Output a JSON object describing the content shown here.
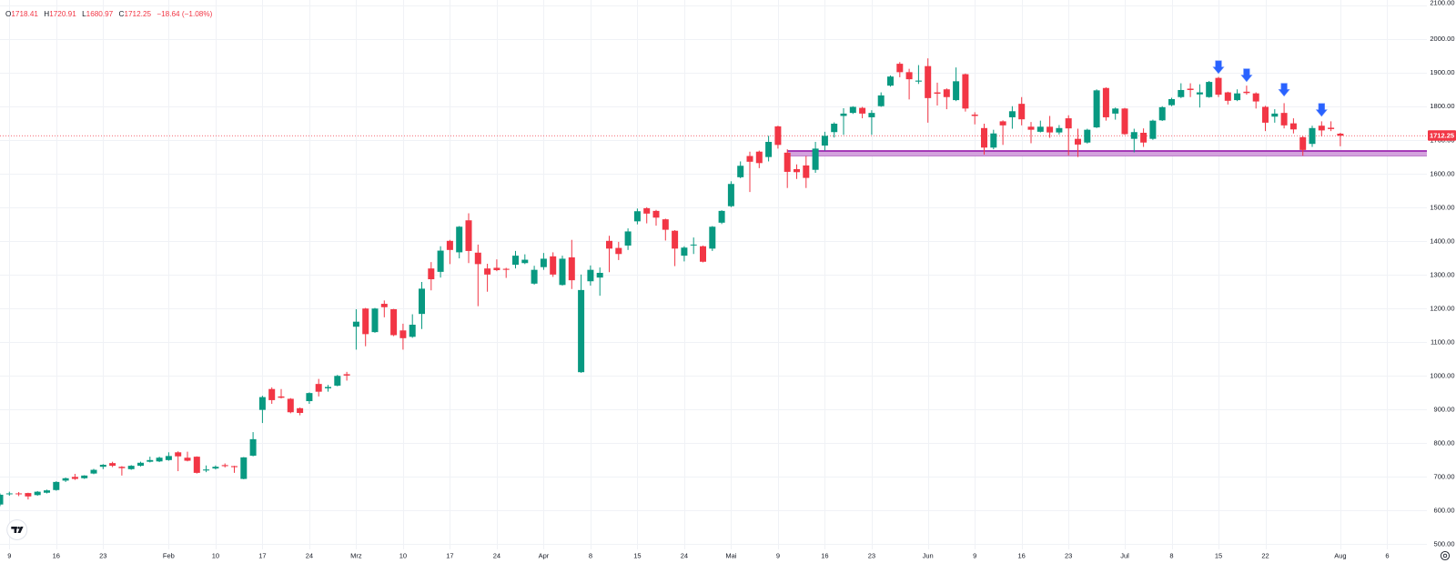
{
  "legend": {
    "o_label": "O",
    "o_value": "1718.41",
    "h_label": "H",
    "h_value": "1720.91",
    "l_label": "L",
    "l_value": "1680.97",
    "c_label": "C",
    "c_value": "1712.25",
    "change": "−18.64 (−1.08%)"
  },
  "colors": {
    "up": "#089981",
    "down": "#f23645",
    "arrow": "#2962ff",
    "zone_line": "#9c27b0",
    "zone_fill": "#d3a2dd",
    "grid": "#f0f2f6",
    "text": "#131722"
  },
  "logo": {
    "label": "TV"
  },
  "settings": {
    "icon": "settings-icon"
  },
  "chart_data": {
    "type": "candlestick",
    "title": "",
    "xlabel": "",
    "ylabel": "",
    "ylim": [
      486,
      2115
    ],
    "grid": true,
    "legend_position": "top-left",
    "current_price": {
      "value": 1712.25,
      "label": "1712.25"
    },
    "support_zone": {
      "top": 1667,
      "bottom": 1652,
      "start_index": 84
    },
    "annotations": [
      {
        "type": "arrow-down",
        "index": 130,
        "tip_price": 1897
      },
      {
        "type": "arrow-down",
        "index": 133,
        "tip_price": 1873
      },
      {
        "type": "arrow-down",
        "index": 137,
        "tip_price": 1830
      },
      {
        "type": "arrow-down",
        "index": 141,
        "tip_price": 1770
      }
    ],
    "y_ticks": [
      {
        "value": 2100,
        "label": "2100.00"
      },
      {
        "value": 2000,
        "label": "2000.00"
      },
      {
        "value": 1900,
        "label": "1900.00"
      },
      {
        "value": 1800,
        "label": "1800.00"
      },
      {
        "value": 1700,
        "label": "1700.00"
      },
      {
        "value": 1600,
        "label": "1600.00"
      },
      {
        "value": 1500,
        "label": "1500.00"
      },
      {
        "value": 1400,
        "label": "1400.00"
      },
      {
        "value": 1300,
        "label": "1300.00"
      },
      {
        "value": 1200,
        "label": "1200.00"
      },
      {
        "value": 1100,
        "label": "1100.00"
      },
      {
        "value": 1000,
        "label": "1000.00"
      },
      {
        "value": 900,
        "label": "900.00"
      },
      {
        "value": 800,
        "label": "800.00"
      },
      {
        "value": 700,
        "label": "700.00"
      },
      {
        "value": 600,
        "label": "600.00"
      },
      {
        "value": 500,
        "label": "500.00"
      }
    ],
    "x_ticks": [
      {
        "label": "9",
        "index": 1
      },
      {
        "label": "16",
        "index": 6
      },
      {
        "label": "23",
        "index": 11
      },
      {
        "label": "Feb",
        "index": 18
      },
      {
        "label": "10",
        "index": 23
      },
      {
        "label": "17",
        "index": 28
      },
      {
        "label": "24",
        "index": 33
      },
      {
        "label": "Mrz",
        "index": 38
      },
      {
        "label": "10",
        "index": 43
      },
      {
        "label": "17",
        "index": 48
      },
      {
        "label": "24",
        "index": 53
      },
      {
        "label": "Apr",
        "index": 58
      },
      {
        "label": "8",
        "index": 63
      },
      {
        "label": "15",
        "index": 68
      },
      {
        "label": "24",
        "index": 73
      },
      {
        "label": "Mai",
        "index": 78
      },
      {
        "label": "9",
        "index": 83
      },
      {
        "label": "16",
        "index": 88
      },
      {
        "label": "23",
        "index": 93
      },
      {
        "label": "Jun",
        "index": 99
      },
      {
        "label": "9",
        "index": 104
      },
      {
        "label": "16",
        "index": 109
      },
      {
        "label": "23",
        "index": 114
      },
      {
        "label": "Jul",
        "index": 120
      },
      {
        "label": "8",
        "index": 125
      },
      {
        "label": "15",
        "index": 130
      },
      {
        "label": "22",
        "index": 135
      },
      {
        "label": "Aug",
        "index": 143
      },
      {
        "label": "6",
        "index": 148
      }
    ],
    "candle_format": [
      "open",
      "high",
      "low",
      "close"
    ],
    "candles": [
      [
        617,
        650,
        612,
        646
      ],
      [
        648,
        655,
        643,
        650
      ],
      [
        650,
        654,
        642,
        648
      ],
      [
        651,
        652,
        632,
        641
      ],
      [
        645,
        657,
        643,
        655
      ],
      [
        652,
        661,
        650,
        659
      ],
      [
        660,
        686,
        658,
        684
      ],
      [
        688,
        697,
        684,
        695
      ],
      [
        699,
        708,
        690,
        693
      ],
      [
        695,
        704,
        693,
        703
      ],
      [
        709,
        723,
        707,
        720
      ],
      [
        729,
        737,
        722,
        735
      ],
      [
        740,
        744,
        728,
        732
      ],
      [
        729,
        731,
        703,
        725
      ],
      [
        722,
        734,
        720,
        732
      ],
      [
        732,
        744,
        730,
        741
      ],
      [
        744,
        759,
        742,
        749
      ],
      [
        745,
        759,
        743,
        756
      ],
      [
        749,
        772,
        747,
        761
      ],
      [
        772,
        775,
        716,
        760
      ],
      [
        756,
        774,
        745,
        747
      ],
      [
        759,
        760,
        709,
        711
      ],
      [
        718,
        733,
        713,
        721
      ],
      [
        724,
        733,
        721,
        729
      ],
      [
        734,
        739,
        727,
        731
      ],
      [
        731,
        732,
        711,
        728
      ],
      [
        693,
        758,
        692,
        757
      ],
      [
        762,
        832,
        760,
        811
      ],
      [
        898,
        940,
        859,
        936
      ],
      [
        960,
        965,
        916,
        927
      ],
      [
        938,
        960,
        932,
        934
      ],
      [
        931,
        933,
        888,
        891
      ],
      [
        903,
        905,
        882,
        889
      ],
      [
        924,
        950,
        916,
        948
      ],
      [
        975,
        990,
        938,
        952
      ],
      [
        962,
        972,
        952,
        966
      ],
      [
        970,
        1002,
        968,
        999
      ],
      [
        1004,
        1011,
        985,
        1000
      ],
      [
        1145,
        1197,
        1077,
        1160
      ],
      [
        1199,
        1201,
        1087,
        1123
      ],
      [
        1129,
        1201,
        1127,
        1199
      ],
      [
        1213,
        1223,
        1173,
        1203
      ],
      [
        1197,
        1198,
        1117,
        1120
      ],
      [
        1134,
        1154,
        1077,
        1111
      ],
      [
        1115,
        1182,
        1112,
        1151
      ],
      [
        1183,
        1278,
        1138,
        1258
      ],
      [
        1318,
        1337,
        1253,
        1286
      ],
      [
        1308,
        1384,
        1291,
        1371
      ],
      [
        1400,
        1403,
        1331,
        1373
      ],
      [
        1366,
        1444,
        1348,
        1442
      ],
      [
        1461,
        1482,
        1334,
        1370
      ],
      [
        1365,
        1389,
        1206,
        1331
      ],
      [
        1318,
        1332,
        1249,
        1300
      ],
      [
        1320,
        1345,
        1310,
        1313
      ],
      [
        1317,
        1320,
        1290,
        1314
      ],
      [
        1329,
        1370,
        1318,
        1356
      ],
      [
        1334,
        1360,
        1331,
        1344
      ],
      [
        1273,
        1326,
        1270,
        1314
      ],
      [
        1322,
        1364,
        1314,
        1347
      ],
      [
        1354,
        1366,
        1293,
        1300
      ],
      [
        1269,
        1356,
        1267,
        1347
      ],
      [
        1351,
        1403,
        1257,
        1283
      ],
      [
        1010,
        1300,
        1008,
        1254
      ],
      [
        1280,
        1327,
        1267,
        1314
      ],
      [
        1291,
        1321,
        1237,
        1305
      ],
      [
        1400,
        1415,
        1307,
        1377
      ],
      [
        1379,
        1397,
        1343,
        1361
      ],
      [
        1386,
        1437,
        1373,
        1428
      ],
      [
        1458,
        1496,
        1449,
        1488
      ],
      [
        1497,
        1500,
        1452,
        1481
      ],
      [
        1489,
        1492,
        1445,
        1469
      ],
      [
        1464,
        1466,
        1401,
        1433
      ],
      [
        1430,
        1432,
        1325,
        1377
      ],
      [
        1356,
        1384,
        1339,
        1380
      ],
      [
        1387,
        1410,
        1361,
        1389
      ],
      [
        1384,
        1386,
        1336,
        1338
      ],
      [
        1377,
        1444,
        1370,
        1442
      ],
      [
        1454,
        1491,
        1450,
        1489
      ],
      [
        1503,
        1577,
        1500,
        1569
      ],
      [
        1589,
        1636,
        1586,
        1623
      ],
      [
        1652,
        1665,
        1545,
        1635
      ],
      [
        1665,
        1668,
        1616,
        1631
      ],
      [
        1649,
        1712,
        1636,
        1694
      ],
      [
        1740,
        1742,
        1674,
        1685
      ],
      [
        1662,
        1672,
        1557,
        1605
      ],
      [
        1613,
        1627,
        1584,
        1604
      ],
      [
        1624,
        1652,
        1557,
        1587
      ],
      [
        1611,
        1694,
        1602,
        1674
      ],
      [
        1683,
        1724,
        1668,
        1712
      ],
      [
        1723,
        1752,
        1707,
        1748
      ],
      [
        1771,
        1794,
        1715,
        1778
      ],
      [
        1780,
        1800,
        1777,
        1798
      ],
      [
        1795,
        1798,
        1764,
        1778
      ],
      [
        1767,
        1788,
        1715,
        1780
      ],
      [
        1800,
        1841,
        1798,
        1832
      ],
      [
        1861,
        1891,
        1858,
        1888
      ],
      [
        1926,
        1931,
        1886,
        1901
      ],
      [
        1901,
        1911,
        1820,
        1880
      ],
      [
        1873,
        1922,
        1866,
        1876
      ],
      [
        1919,
        1942,
        1751,
        1824
      ],
      [
        1841,
        1870,
        1802,
        1837
      ],
      [
        1850,
        1853,
        1791,
        1827
      ],
      [
        1818,
        1915,
        1815,
        1874
      ],
      [
        1895,
        1897,
        1784,
        1793
      ],
      [
        1775,
        1782,
        1746,
        1771
      ],
      [
        1735,
        1748,
        1656,
        1677
      ],
      [
        1677,
        1730,
        1672,
        1719
      ],
      [
        1755,
        1758,
        1685,
        1743
      ],
      [
        1767,
        1800,
        1733,
        1785
      ],
      [
        1807,
        1827,
        1743,
        1761
      ],
      [
        1739,
        1753,
        1690,
        1730
      ],
      [
        1724,
        1757,
        1722,
        1739
      ],
      [
        1739,
        1771,
        1706,
        1722
      ],
      [
        1722,
        1744,
        1716,
        1735
      ],
      [
        1764,
        1773,
        1654,
        1734
      ],
      [
        1703,
        1733,
        1649,
        1686
      ],
      [
        1692,
        1733,
        1689,
        1730
      ],
      [
        1737,
        1850,
        1735,
        1847
      ],
      [
        1854,
        1856,
        1757,
        1767
      ],
      [
        1778,
        1796,
        1760,
        1793
      ],
      [
        1793,
        1795,
        1715,
        1717
      ],
      [
        1703,
        1733,
        1663,
        1723
      ],
      [
        1721,
        1734,
        1679,
        1692
      ],
      [
        1703,
        1760,
        1700,
        1757
      ],
      [
        1758,
        1800,
        1756,
        1797
      ],
      [
        1803,
        1825,
        1800,
        1821
      ],
      [
        1827,
        1868,
        1824,
        1848
      ],
      [
        1852,
        1868,
        1827,
        1848
      ],
      [
        1835,
        1865,
        1796,
        1841
      ],
      [
        1827,
        1875,
        1825,
        1872
      ],
      [
        1884,
        1887,
        1827,
        1834
      ],
      [
        1841,
        1843,
        1805,
        1816
      ],
      [
        1818,
        1850,
        1815,
        1838
      ],
      [
        1843,
        1861,
        1834,
        1839
      ],
      [
        1838,
        1841,
        1793,
        1814
      ],
      [
        1798,
        1801,
        1726,
        1751
      ],
      [
        1769,
        1791,
        1751,
        1778
      ],
      [
        1780,
        1809,
        1734,
        1743
      ],
      [
        1749,
        1764,
        1719,
        1731
      ],
      [
        1708,
        1711,
        1653,
        1670
      ],
      [
        1688,
        1742,
        1679,
        1735
      ],
      [
        1742,
        1755,
        1710,
        1728
      ],
      [
        1736,
        1755,
        1726,
        1732
      ],
      [
        1718.41,
        1720.91,
        1680.97,
        1712.25
      ]
    ]
  }
}
